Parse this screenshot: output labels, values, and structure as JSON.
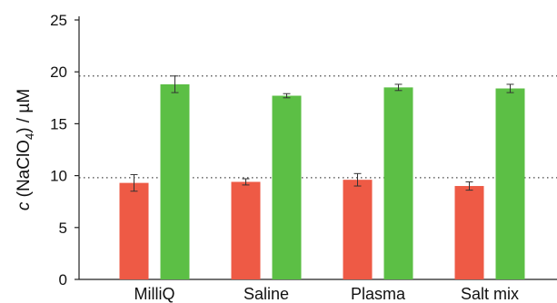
{
  "chart_data": {
    "type": "bar",
    "ylabel": {
      "italic": "c",
      "rest": " (NaClO",
      "sub": "4",
      "end": ") / µM"
    },
    "categories": [
      "MilliQ",
      "Saline",
      "Plasma",
      "Salt mix"
    ],
    "series": [
      {
        "values": [
          9.3,
          9.4,
          9.6,
          9.0
        ],
        "errors": [
          0.8,
          0.3,
          0.6,
          0.4
        ],
        "color": "#ee5a45"
      },
      {
        "values": [
          18.8,
          17.7,
          18.5,
          18.4
        ],
        "errors": [
          0.8,
          0.2,
          0.3,
          0.4
        ],
        "color": "#5cbf45"
      }
    ],
    "ylim": [
      0,
      25
    ],
    "yticks": [
      0,
      5,
      10,
      15,
      20,
      25
    ],
    "ytick_labels": [
      "0",
      "5",
      "10",
      "15",
      "20",
      "25"
    ],
    "reference_lines": [
      9.8,
      19.6
    ],
    "grid": false,
    "legend": "none"
  }
}
